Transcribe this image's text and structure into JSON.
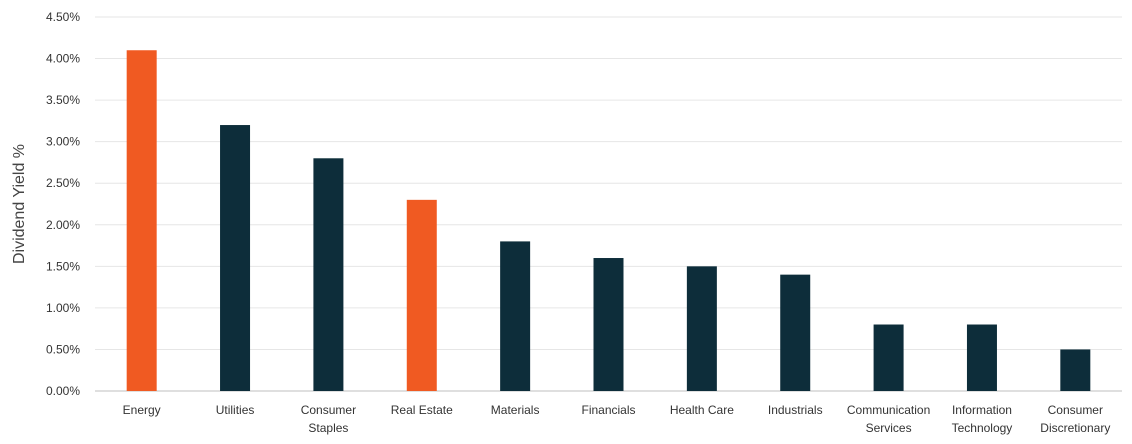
{
  "chart_data": {
    "type": "bar",
    "title": "",
    "xlabel": "",
    "ylabel": "Dividend Yield %",
    "ylim": [
      0,
      4.5
    ],
    "yticks": [
      "0.00%",
      "0.50%",
      "1.00%",
      "1.50%",
      "2.00%",
      "2.50%",
      "3.00%",
      "3.50%",
      "4.00%",
      "4.50%"
    ],
    "grid": true,
    "categories": [
      [
        "Energy"
      ],
      [
        "Utilities"
      ],
      [
        "Consumer",
        "Staples"
      ],
      [
        "Real Estate"
      ],
      [
        "Materials"
      ],
      [
        "Financials"
      ],
      [
        "Health Care"
      ],
      [
        "Industrials"
      ],
      [
        "Communication",
        "Services"
      ],
      [
        "Information",
        "Technology"
      ],
      [
        "Consumer",
        "Discretionary"
      ]
    ],
    "values": [
      4.1,
      3.2,
      2.8,
      2.3,
      1.8,
      1.6,
      1.5,
      1.4,
      0.8,
      0.8,
      0.5
    ],
    "highlighted": [
      true,
      false,
      false,
      true,
      false,
      false,
      false,
      false,
      false,
      false,
      false
    ],
    "colors": {
      "default": "#0d2d3a",
      "highlight": "#f05a22"
    }
  }
}
